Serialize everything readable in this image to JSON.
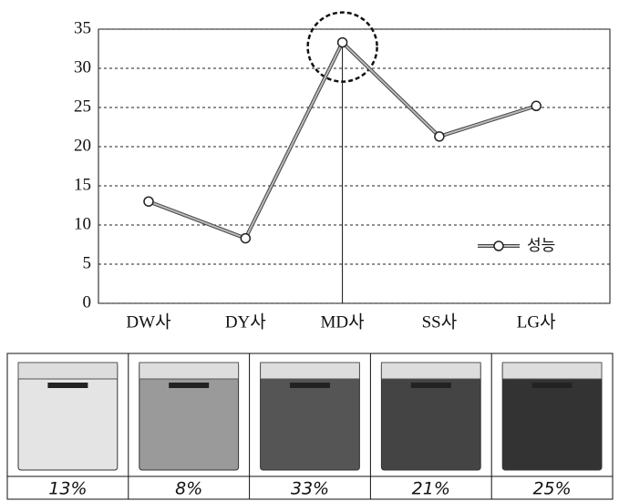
{
  "chart_data": {
    "type": "line",
    "categories": [
      "DW사",
      "DY사",
      "MD사",
      "SS사",
      "LG사"
    ],
    "series": [
      {
        "name": "성능",
        "color": "#888888",
        "values": [
          13,
          8.3,
          33.3,
          21.3,
          25.2
        ],
        "value_labels": [
          "13%",
          "8%",
          "33%",
          "21%",
          "25%"
        ]
      }
    ],
    "ylim": [
      0,
      35
    ],
    "yticks": [
      0,
      5,
      10,
      15,
      20,
      25,
      30,
      35
    ],
    "grid": true,
    "legend": "lower right"
  }
}
